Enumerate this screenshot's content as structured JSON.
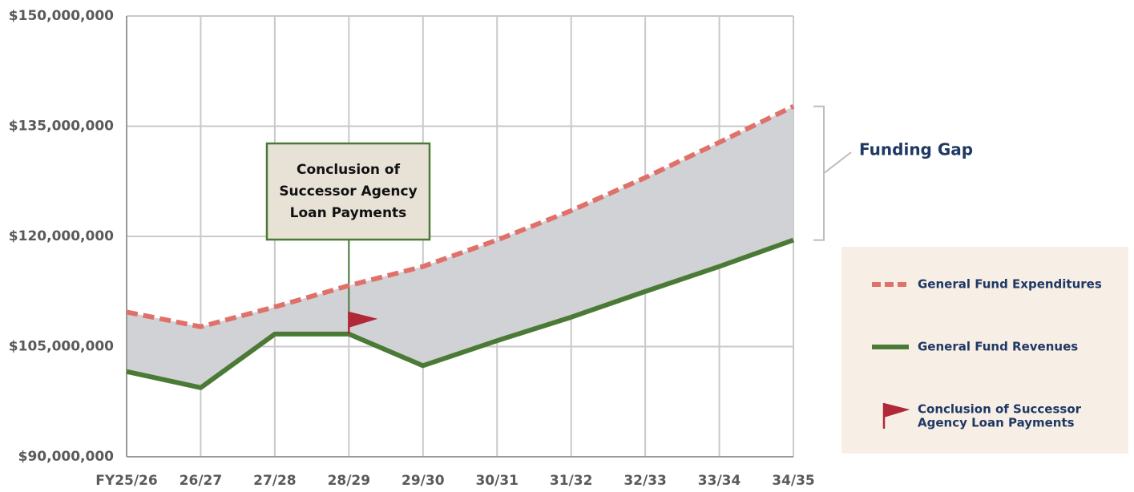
{
  "chart_data": {
    "type": "line",
    "categories": [
      "FY25/26",
      "26/27",
      "27/28",
      "28/29",
      "29/30",
      "30/31",
      "31/32",
      "32/33",
      "33/34",
      "34/35"
    ],
    "series": [
      {
        "name": "General Fund Expenditures",
        "color": "#e0716a",
        "dashed": true,
        "values": [
          109700000,
          107700000,
          110400000,
          113300000,
          115900000,
          119500000,
          123500000,
          128000000,
          132800000,
          137700000
        ]
      },
      {
        "name": "General Fund Revenues",
        "color": "#4b7a36",
        "dashed": false,
        "values": [
          101600000,
          99400000,
          106700000,
          106700000,
          102400000,
          105800000,
          109000000,
          112500000,
          115900000,
          119500000
        ]
      }
    ],
    "ylim": [
      90000000,
      150000000
    ],
    "yticks": [
      {
        "value": 90000000,
        "label": "$90,000,000"
      },
      {
        "value": 105000000,
        "label": "$105,000,000"
      },
      {
        "value": 120000000,
        "label": "$120,000,000"
      },
      {
        "value": 135000000,
        "label": "$135,000,000"
      },
      {
        "value": 150000000,
        "label": "$150,000,000"
      }
    ],
    "grid": true,
    "gap_fill": "#d1d2d5",
    "gap_label": "Funding Gap",
    "annotation": [
      "Conclusion of",
      "Successor Agency",
      "Loan Payments"
    ],
    "marker": {
      "category": "28/29",
      "color": "#b0283a",
      "name": [
        "Conclusion of Successor",
        "Agency Loan Payments"
      ]
    }
  }
}
